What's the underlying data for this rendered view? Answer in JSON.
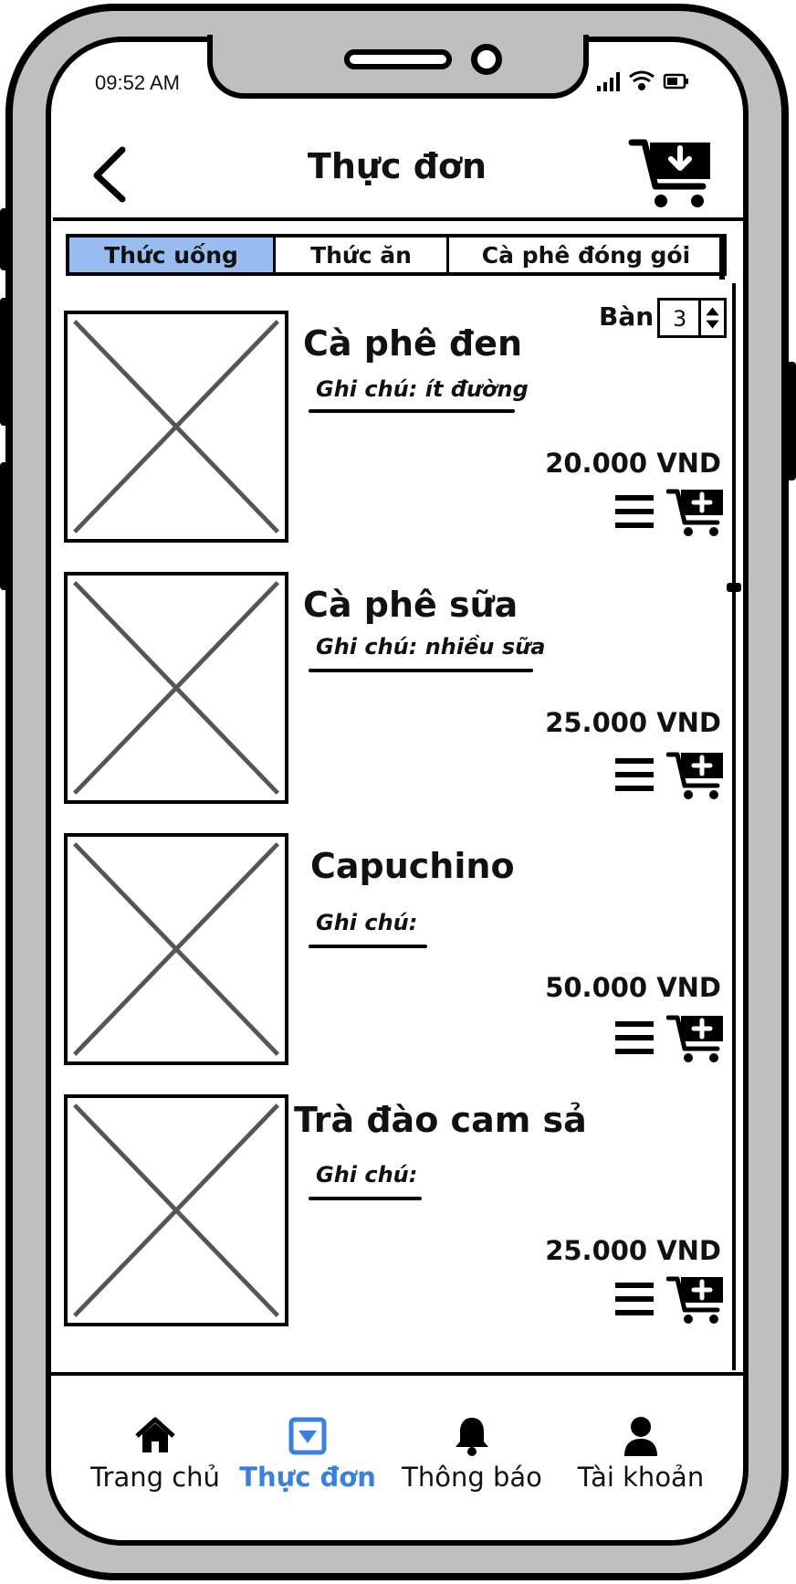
{
  "status_bar": {
    "time": "09:52 AM"
  },
  "header": {
    "title": "Thực đơn"
  },
  "tabs": [
    {
      "label": "Thức uống",
      "active": true
    },
    {
      "label": "Thức ăn",
      "active": false
    },
    {
      "label": "Cà phê đóng gói",
      "active": false
    }
  ],
  "table": {
    "label": "Bàn",
    "value": "3"
  },
  "items": [
    {
      "name": "Cà phê đen",
      "note": "Ghi chú: ít đường",
      "price": "20.000 VND"
    },
    {
      "name": "Cà phê sữa",
      "note": "Ghi chú: nhiều sữa",
      "price": "25.000 VND"
    },
    {
      "name": "Capuchino",
      "note": "Ghi chú:",
      "price": "50.000 VND"
    },
    {
      "name": "Trà đào cam sả",
      "note": "Ghi chú:",
      "price": "25.000 VND"
    }
  ],
  "bottom_nav": [
    {
      "label": "Trang chủ",
      "icon": "home-icon",
      "active": false
    },
    {
      "label": "Thực đơn",
      "icon": "menu-dropdown-icon",
      "active": true
    },
    {
      "label": "Thông báo",
      "icon": "bell-icon",
      "active": false
    },
    {
      "label": "Tài khoản",
      "icon": "user-icon",
      "active": false
    }
  ],
  "colors": {
    "active_tab": "#99bdf0",
    "active_nav": "#3b80e0",
    "frame": "#bfbfbf"
  }
}
